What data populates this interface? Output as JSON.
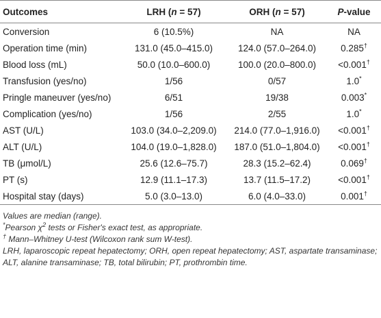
{
  "table": {
    "header": [
      [
        {
          "text": "Outcomes"
        }
      ],
      [
        {
          "text": "LRH ("
        },
        {
          "text": "n",
          "italic": true
        },
        {
          "text": " = 57)"
        }
      ],
      [
        {
          "text": "ORH ("
        },
        {
          "text": "n",
          "italic": true
        },
        {
          "text": " = 57)"
        }
      ],
      [
        {
          "text": "P",
          "italic": true
        },
        {
          "text": "-value"
        }
      ]
    ],
    "rows": [
      [
        [
          "Conversion"
        ],
        [
          "6 (10.5%)"
        ],
        [
          "NA"
        ],
        [
          "NA"
        ]
      ],
      [
        [
          "Operation time (min)"
        ],
        [
          "131.0 (45.0–415.0)"
        ],
        [
          "124.0 (57.0–264.0)"
        ],
        [
          "0.285",
          {
            "text": "†",
            "sup": true
          }
        ]
      ],
      [
        [
          "Blood loss (mL)"
        ],
        [
          "50.0 (10.0–600.0)"
        ],
        [
          "100.0 (20.0–800.0)"
        ],
        [
          "<0.001",
          {
            "text": "†",
            "sup": true
          }
        ]
      ],
      [
        [
          "Transfusion (yes/no)"
        ],
        [
          "1/56"
        ],
        [
          "0/57"
        ],
        [
          "1.0",
          {
            "text": "*",
            "sup": true
          }
        ]
      ],
      [
        [
          "Pringle maneuver (yes/no)"
        ],
        [
          "6/51"
        ],
        [
          "19/38"
        ],
        [
          "0.003",
          {
            "text": "*",
            "sup": true
          }
        ]
      ],
      [
        [
          "Complication (yes/no)"
        ],
        [
          "1/56"
        ],
        [
          "2/55"
        ],
        [
          "1.0",
          {
            "text": "*",
            "sup": true
          }
        ]
      ],
      [
        [
          "AST (U/L)"
        ],
        [
          "103.0 (34.0–2,209.0)"
        ],
        [
          "214.0 (77.0–1,916.0)"
        ],
        [
          "<0.001",
          {
            "text": "†",
            "sup": true
          }
        ]
      ],
      [
        [
          "ALT (U/L)"
        ],
        [
          "104.0 (19.0–1,828.0)"
        ],
        [
          "187.0 (51.0–1,804.0)"
        ],
        [
          "<0.001",
          {
            "text": "†",
            "sup": true
          }
        ]
      ],
      [
        [
          "TB (μmol/L)"
        ],
        [
          "25.6 (12.6–75.7)"
        ],
        [
          "28.3 (15.2–62.4)"
        ],
        [
          "0.069",
          {
            "text": "†",
            "sup": true
          }
        ]
      ],
      [
        [
          "PT (s)"
        ],
        [
          "12.9 (11.1–17.3)"
        ],
        [
          "13.7 (11.5–17.2)"
        ],
        [
          "<0.001",
          {
            "text": "†",
            "sup": true
          }
        ]
      ],
      [
        [
          "Hospital stay (days)"
        ],
        [
          "5.0 (3.0–13.0)"
        ],
        [
          "6.0 (4.0–33.0)"
        ],
        [
          "0.001",
          {
            "text": "†",
            "sup": true
          }
        ]
      ]
    ]
  },
  "footnotes": [
    [
      {
        "text": "Values are median (range)."
      }
    ],
    [
      {
        "text": "*",
        "sup": true
      },
      {
        "text": "Pearson χ"
      },
      {
        "text": "2",
        "sup": true
      },
      {
        "text": " tests or Fisher's exact test, as appropriate."
      }
    ],
    [
      {
        "text": "†",
        "sup": true
      },
      {
        "text": " Mann–Whitney U-test (Wilcoxon rank sum W-test)."
      }
    ],
    [
      {
        "text": "LRH, laparoscopic repeat hepatectomy; ORH, open repeat hepatectomy; AST, aspartate transaminase; ALT, alanine transaminase; TB, total bilirubin; PT, prothrombin time."
      }
    ]
  ]
}
